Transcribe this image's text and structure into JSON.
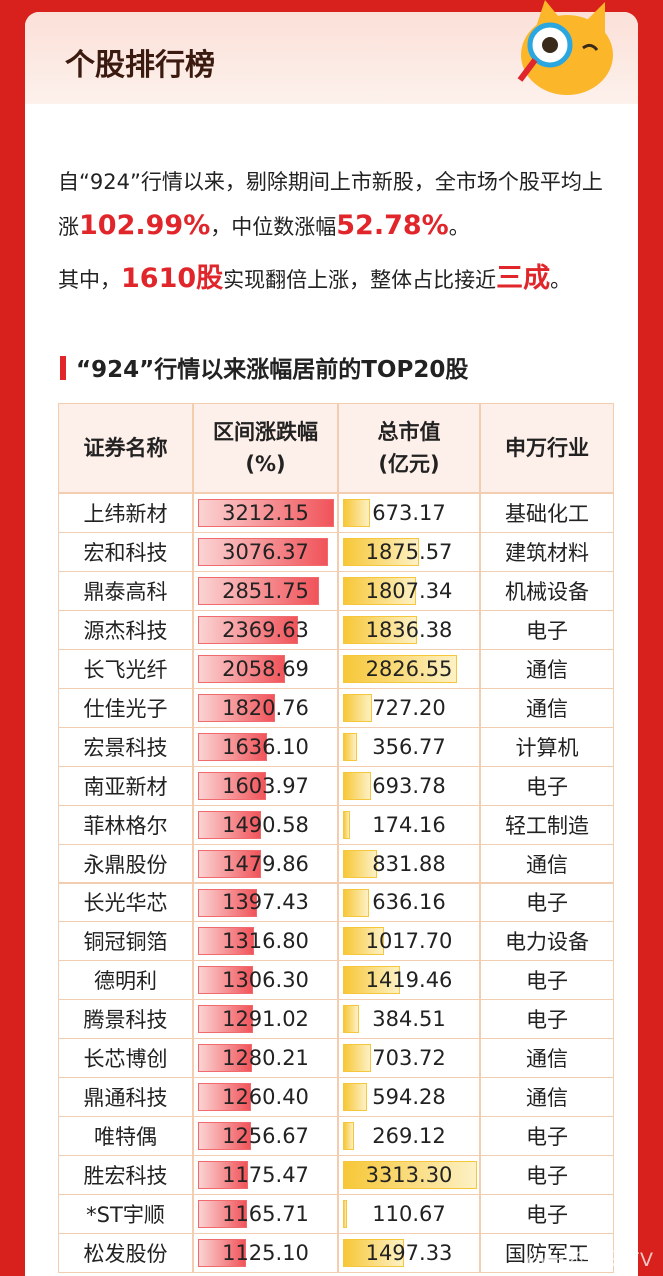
{
  "header": {
    "title": "个股排行榜"
  },
  "intro": {
    "paragraphs": [
      [
        {
          "text": "自“924”行情以来，剔除期间上市新股，全市场个股平均上涨",
          "em": false
        },
        {
          "text": "102.99%",
          "em": true
        },
        {
          "text": "，中位数涨幅",
          "em": false
        },
        {
          "text": "52.78%",
          "em": true
        },
        {
          "text": "。",
          "em": false
        }
      ],
      [
        {
          "text": "其中，",
          "em": false
        },
        {
          "text": "1610股",
          "em": true
        },
        {
          "text": "实现翻倍上涨，整体占比接近",
          "em": false
        },
        {
          "text": "三成",
          "em": true
        },
        {
          "text": "。",
          "em": false
        }
      ]
    ]
  },
  "table": {
    "title": "“924”行情以来涨幅居前的TOP20股",
    "columns": [
      [
        "证券名称"
      ],
      [
        "区间涨跌幅",
        "(%)"
      ],
      [
        "总市值",
        "(亿元)"
      ],
      [
        "申万行业"
      ]
    ],
    "rows": [
      [
        "上纬新材",
        "3212.15",
        "673.17",
        "基础化工"
      ],
      [
        "宏和科技",
        "3076.37",
        "1875.57",
        "建筑材料"
      ],
      [
        "鼎泰高科",
        "2851.75",
        "1807.34",
        "机械设备"
      ],
      [
        "源杰科技",
        "2369.63",
        "1836.38",
        "电子"
      ],
      [
        "长飞光纤",
        "2058.69",
        "2826.55",
        "通信"
      ],
      [
        "仕佳光子",
        "1820.76",
        "727.20",
        "通信"
      ],
      [
        "宏景科技",
        "1636.10",
        "356.77",
        "计算机"
      ],
      [
        "南亚新材",
        "1603.97",
        "693.78",
        "电子"
      ],
      [
        "菲林格尔",
        "1490.58",
        "174.16",
        "轻工制造"
      ],
      [
        "永鼎股份",
        "1479.86",
        "831.88",
        "通信"
      ],
      [
        "长光华芯",
        "1397.43",
        "636.16",
        "电子"
      ],
      [
        "铜冠铜箔",
        "1316.80",
        "1017.70",
        "电力设备"
      ],
      [
        "德明利",
        "1306.30",
        "1419.46",
        "电子"
      ],
      [
        "腾景科技",
        "1291.02",
        "384.51",
        "电子"
      ],
      [
        "长芯博创",
        "1280.21",
        "703.72",
        "通信"
      ],
      [
        "鼎通科技",
        "1260.40",
        "594.28",
        "通信"
      ],
      [
        "唯特偶",
        "1256.67",
        "269.12",
        "电子"
      ],
      [
        "胜宏科技",
        "1175.47",
        "3313.30",
        "电子"
      ],
      [
        "*ST宇顺",
        "1165.71",
        "110.67",
        "电子"
      ],
      [
        "松发股份",
        "1125.10",
        "1497.33",
        "国防军工"
      ]
    ]
  },
  "watermark": "@一杯哥没有V"
}
